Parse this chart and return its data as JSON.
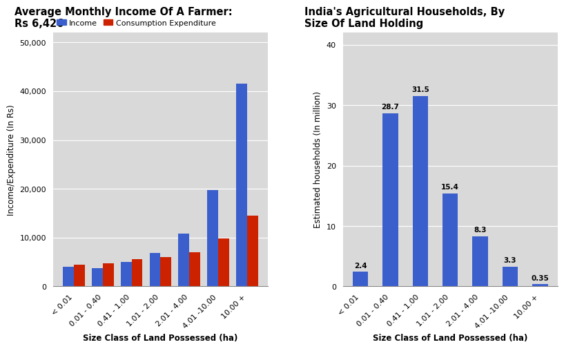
{
  "chart1": {
    "title": "Average Monthly Income Of A Farmer:\nRs 6,426",
    "categories": [
      "< 0.01",
      "0.01 - 0.40",
      "0.41 - 1.00",
      "1.01 - 2.00",
      "2.01 - 4.00",
      "4.01 -10.00",
      "10.00 +"
    ],
    "income": [
      4000,
      3800,
      5000,
      6800,
      10800,
      19800,
      41500
    ],
    "expenditure": [
      4500,
      4700,
      5600,
      6000,
      7000,
      9800,
      14500
    ],
    "income_color": "#3a5fcd",
    "expenditure_color": "#cc2200",
    "ylabel": "Income/Expenditure (In Rs)",
    "xlabel": "Size Class of Land Possessed (ha)",
    "ylim": [
      0,
      52000
    ],
    "yticks": [
      0,
      10000,
      20000,
      30000,
      40000,
      50000
    ],
    "ytick_labels": [
      "0",
      "10,000",
      "20,000",
      "30,000",
      "40,000",
      "50,000"
    ],
    "legend_income": "Income",
    "legend_expenditure": "Consumption Expenditure",
    "bg_color": "#d9d9d9"
  },
  "chart2": {
    "title": "India's Agricultural Households, By\nSize Of Land Holding",
    "categories": [
      "< 0.01",
      "0.01 - 0.40",
      "0.41 - 1.00",
      "1.01 - 2.00",
      "2.01 - 4.00",
      "4.01 -10.00",
      "10.00 +"
    ],
    "values": [
      2.4,
      28.7,
      31.5,
      15.4,
      8.3,
      3.3,
      0.35
    ],
    "bar_color": "#3a5fcd",
    "ylabel": "Estimated households (In million)",
    "xlabel": "Size Class of Land Possessed (ha)",
    "ylim": [
      0,
      42
    ],
    "yticks": [
      0,
      10,
      20,
      30,
      40
    ],
    "bg_color": "#d9d9d9"
  },
  "fig_bg_color": "#ffffff",
  "title_fontsize": 10.5,
  "label_fontsize": 8.5,
  "tick_fontsize": 8,
  "bar_annotation_fontsize": 7.5
}
